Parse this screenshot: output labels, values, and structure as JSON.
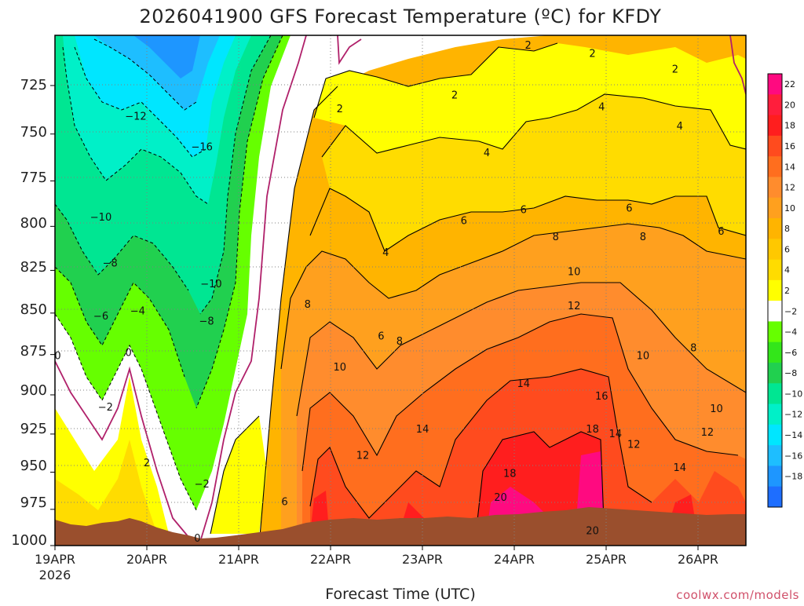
{
  "chart_data": {
    "type": "heatmap",
    "title": "2026041900 GFS Forecast Temperature (ºC) for KFDY",
    "xlabel": "Forecast Time (UTC)",
    "ylabel": "",
    "ylim": [
      1000,
      700
    ],
    "y_ticks": [
      "725",
      "750",
      "775",
      "800",
      "825",
      "850",
      "875",
      "900",
      "925",
      "950",
      "975",
      "1000"
    ],
    "x_ticks": [
      "19APR",
      "20APR",
      "21APR",
      "22APR",
      "23APR",
      "24APR",
      "25APR",
      "26APR"
    ],
    "x_year": "2026",
    "colorbar_levels": [
      "22",
      "20",
      "18",
      "16",
      "14",
      "12",
      "10",
      "8",
      "6",
      "4",
      "2",
      "−2",
      "−4",
      "−6",
      "−8",
      "−10",
      "−12",
      "−14",
      "−16",
      "−18"
    ],
    "colorbar_colors": [
      "#ff0a80",
      "#ff1e3c",
      "#ff1e1e",
      "#ff4b1e",
      "#ff6e1e",
      "#ff8c2d",
      "#ffa01e",
      "#ffb400",
      "#ffc800",
      "#ffdc00",
      "#ffff00",
      "#ffffff",
      "#66ff00",
      "#33e61a",
      "#21d04f",
      "#00e692",
      "#00f0c8",
      "#00e6ff",
      "#1ebeff",
      "#1e96ff",
      "#1e6eff"
    ],
    "contour_labels": [
      {
        "text": "−12",
        "day": 0.88,
        "p": 741
      },
      {
        "text": "−16",
        "day": 1.6,
        "p": 757
      },
      {
        "text": "−10",
        "day": 0.5,
        "p": 795
      },
      {
        "text": "−8",
        "day": 0.6,
        "p": 821
      },
      {
        "text": "−10",
        "day": 1.7,
        "p": 833
      },
      {
        "text": "−6",
        "day": 0.5,
        "p": 852
      },
      {
        "text": "−4",
        "day": 0.9,
        "p": 849
      },
      {
        "text": "−8",
        "day": 1.65,
        "p": 855
      },
      {
        "text": "0",
        "day": 0.03,
        "p": 876
      },
      {
        "text": "0",
        "day": 0.8,
        "p": 874
      },
      {
        "text": "−2",
        "day": 0.55,
        "p": 908
      },
      {
        "text": "2",
        "day": 1.0,
        "p": 944
      },
      {
        "text": "−2",
        "day": 1.6,
        "p": 958
      },
      {
        "text": "0",
        "day": 1.55,
        "p": 995
      },
      {
        "text": "6",
        "day": 2.5,
        "p": 970
      },
      {
        "text": "8",
        "day": 2.75,
        "p": 845
      },
      {
        "text": "10",
        "day": 3.1,
        "p": 883
      },
      {
        "text": "12",
        "day": 3.35,
        "p": 939
      },
      {
        "text": "14",
        "day": 4.0,
        "p": 922
      },
      {
        "text": "2",
        "day": 3.1,
        "p": 737
      },
      {
        "text": "2",
        "day": 4.35,
        "p": 730
      },
      {
        "text": "4",
        "day": 3.6,
        "p": 815
      },
      {
        "text": "6",
        "day": 3.55,
        "p": 864
      },
      {
        "text": "8",
        "day": 3.75,
        "p": 867
      },
      {
        "text": "4",
        "day": 4.7,
        "p": 760
      },
      {
        "text": "6",
        "day": 4.45,
        "p": 797
      },
      {
        "text": "6",
        "day": 5.1,
        "p": 791
      },
      {
        "text": "8",
        "day": 5.45,
        "p": 806
      },
      {
        "text": "10",
        "day": 5.65,
        "p": 826
      },
      {
        "text": "12",
        "day": 5.65,
        "p": 846
      },
      {
        "text": "14",
        "day": 5.1,
        "p": 893
      },
      {
        "text": "18",
        "day": 4.95,
        "p": 951
      },
      {
        "text": "20",
        "day": 4.85,
        "p": 967
      },
      {
        "text": "18",
        "day": 5.85,
        "p": 922
      },
      {
        "text": "16",
        "day": 5.95,
        "p": 901
      },
      {
        "text": "20",
        "day": 5.85,
        "p": 990
      },
      {
        "text": "14",
        "day": 6.1,
        "p": 925
      },
      {
        "text": "12",
        "day": 6.3,
        "p": 932
      },
      {
        "text": "10",
        "day": 6.4,
        "p": 876
      },
      {
        "text": "2",
        "day": 5.85,
        "p": 709
      },
      {
        "text": "2",
        "day": 6.75,
        "p": 717
      },
      {
        "text": "2",
        "day": 5.15,
        "p": 705
      },
      {
        "text": "4",
        "day": 5.95,
        "p": 736
      },
      {
        "text": "4",
        "day": 6.8,
        "p": 746
      },
      {
        "text": "6",
        "day": 6.25,
        "p": 790
      },
      {
        "text": "8",
        "day": 6.4,
        "p": 806
      },
      {
        "text": "6",
        "day": 7.25,
        "p": 803
      },
      {
        "text": "8",
        "day": 6.95,
        "p": 871
      },
      {
        "text": "10",
        "day": 7.2,
        "p": 909
      },
      {
        "text": "12",
        "day": 7.1,
        "p": 924
      },
      {
        "text": "14",
        "day": 6.8,
        "p": 947
      }
    ]
  },
  "credit": "coolwx.com/models"
}
